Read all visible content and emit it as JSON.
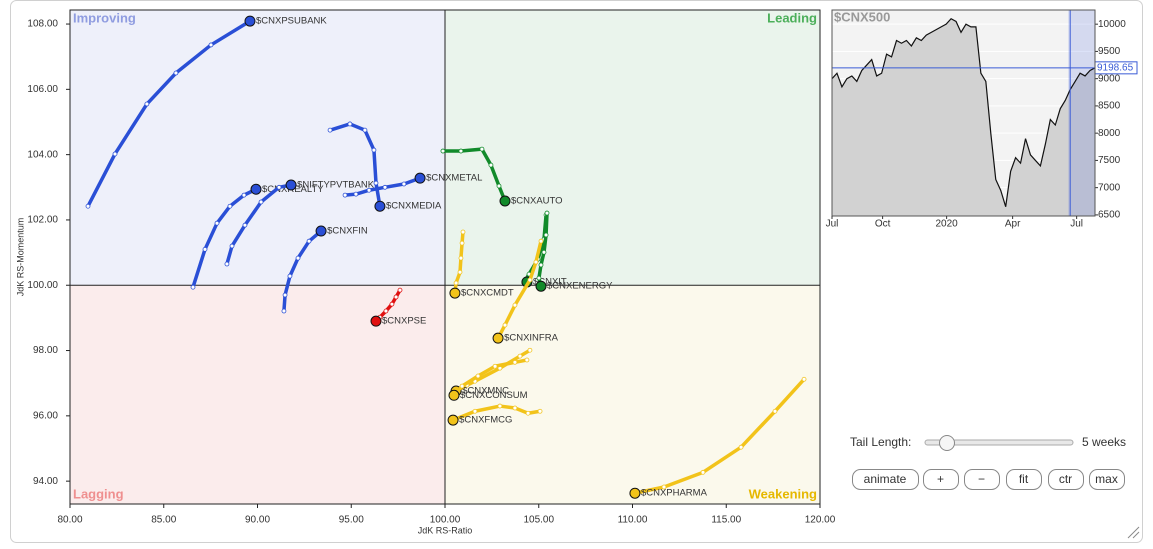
{
  "chart_data": [
    {
      "type": "rrg",
      "xlabel": "JdK RS-Ratio",
      "ylabel": "JdK RS-Momentum",
      "xlim": [
        80,
        120
      ],
      "ylim": [
        93.3,
        108.43
      ],
      "origin": [
        100,
        100
      ],
      "xticks": [
        {
          "value": 80,
          "label": "80.00"
        },
        {
          "value": 85,
          "label": "85.00"
        },
        {
          "value": 90,
          "label": "90.00"
        },
        {
          "value": 95,
          "label": "95.00"
        },
        {
          "value": 100,
          "label": "100.00"
        },
        {
          "value": 105,
          "label": "105.00"
        },
        {
          "value": 110,
          "label": "110.00"
        },
        {
          "value": 115,
          "label": "115.00"
        },
        {
          "value": 120,
          "label": "120.00"
        }
      ],
      "yticks": [
        {
          "value": 94,
          "label": "94.00"
        },
        {
          "value": 96,
          "label": "96.00"
        },
        {
          "value": 98,
          "label": "98.00"
        },
        {
          "value": 100,
          "label": "100.00"
        },
        {
          "value": 102,
          "label": "102.00"
        },
        {
          "value": 104,
          "label": "104.00"
        },
        {
          "value": 106,
          "label": "106.00"
        },
        {
          "value": 108,
          "label": "108.00"
        }
      ],
      "quadrants": [
        {
          "label": "Improving",
          "color": "#8f9ce0",
          "fill": "#eef0fa"
        },
        {
          "label": "Leading",
          "color": "#4caf5a",
          "fill": "#eaf4ec"
        },
        {
          "label": "Lagging",
          "color": "#ef8f8f",
          "fill": "#fbecec"
        },
        {
          "label": "Weakening",
          "color": "#e6b800",
          "fill": "#fbf9ec"
        }
      ],
      "series": [
        {
          "name": "$CNXPSUBANK",
          "color": "#2a4fd6",
          "x": [
            80.96,
            82.4,
            84.1,
            85.65,
            87.52,
            89.6
          ],
          "values": [
            102.42,
            104.02,
            105.55,
            106.5,
            107.36,
            108.09
          ]
        },
        {
          "name": "$CNXREALTY",
          "color": "#2a4fd6",
          "x": [
            86.56,
            87.2,
            87.84,
            88.53,
            89.28,
            89.92
          ],
          "values": [
            99.94,
            101.1,
            101.9,
            102.42,
            102.76,
            102.94
          ]
        },
        {
          "name": "$NIFTYPVTBANK",
          "color": "#2a4fd6",
          "x": [
            88.37,
            88.64,
            89.33,
            90.19,
            91.15,
            91.79
          ],
          "values": [
            100.65,
            101.2,
            101.84,
            102.55,
            103.0,
            103.07
          ]
        },
        {
          "name": "$CNXFIN",
          "color": "#2a4fd6",
          "x": [
            91.41,
            91.47,
            91.73,
            92.16,
            92.75,
            93.39
          ],
          "values": [
            99.21,
            99.7,
            100.28,
            100.83,
            101.35,
            101.66
          ]
        },
        {
          "name": "$CNXMEDIA",
          "color": "#2a4fd6",
          "x": [
            93.87,
            94.93,
            95.73,
            96.21,
            96.32,
            96.53
          ],
          "values": [
            104.75,
            104.94,
            104.75,
            104.14,
            103.13,
            102.42
          ]
        },
        {
          "name": "$CNXMETAL",
          "color": "#2a4fd6",
          "x": [
            94.67,
            95.25,
            95.95,
            96.8,
            97.81,
            98.67
          ],
          "values": [
            102.76,
            102.79,
            102.91,
            103.0,
            103.1,
            103.28
          ]
        },
        {
          "name": "$CNXAUTO",
          "color": "#118a2a",
          "x": [
            99.89,
            100.85,
            101.97,
            102.45,
            102.88,
            103.2
          ],
          "values": [
            104.11,
            104.11,
            104.17,
            103.68,
            103.04,
            102.58
          ]
        },
        {
          "name": "$CNXIT",
          "color": "#118a2a",
          "x": [
            105.39,
            105.28,
            104.96,
            104.48,
            104.21,
            104.37
          ],
          "values": [
            102.15,
            101.41,
            100.8,
            100.34,
            100.07,
            100.1
          ]
        },
        {
          "name": "$CNXENERGY",
          "color": "#118a2a",
          "x": [
            105.44,
            105.39,
            105.28,
            105.12,
            105.01,
            105.12
          ],
          "values": [
            102.21,
            101.54,
            101.01,
            100.62,
            100.22,
            99.97
          ]
        },
        {
          "name": "$CNXCMDT",
          "color": "#f2c31a",
          "x": [
            100.96,
            100.91,
            100.85,
            100.8,
            100.59,
            100.53
          ],
          "values": [
            101.63,
            101.29,
            100.83,
            100.4,
            100.07,
            99.76
          ]
        },
        {
          "name": "$CNXINFRA",
          "color": "#f2c31a",
          "x": [
            105.12,
            104.85,
            104.53,
            103.73,
            103.2,
            102.83
          ],
          "values": [
            101.35,
            100.71,
            100.16,
            99.39,
            98.78,
            98.38
          ]
        },
        {
          "name": "$CNXMNC",
          "color": "#f2c31a",
          "x": [
            104.53,
            104.0,
            102.93,
            101.6,
            101.17,
            100.59
          ],
          "values": [
            98.01,
            97.83,
            97.46,
            97.06,
            96.94,
            96.76
          ]
        },
        {
          "name": "$CNXCONSUM",
          "color": "#f2c31a",
          "x": [
            104.37,
            103.73,
            102.67,
            101.76,
            100.91,
            100.48
          ],
          "values": [
            97.71,
            97.64,
            97.52,
            97.22,
            96.91,
            96.63
          ]
        },
        {
          "name": "$CNXFMCG",
          "color": "#f2c31a",
          "x": [
            105.07,
            104.43,
            103.73,
            102.93,
            101.6,
            100.43
          ],
          "values": [
            96.14,
            96.08,
            96.24,
            96.3,
            96.14,
            95.87
          ]
        },
        {
          "name": "$CNXPHARMA",
          "color": "#f2c31a",
          "x": [
            119.15,
            117.6,
            115.79,
            113.76,
            111.68,
            110.13
          ],
          "values": [
            97.12,
            96.14,
            95.04,
            94.27,
            93.82,
            93.63
          ]
        },
        {
          "name": "$CNXPSE",
          "color": "#e01010",
          "x": [
            97.6,
            97.39,
            97.17,
            96.85,
            96.53,
            96.32
          ],
          "values": [
            99.85,
            99.64,
            99.42,
            99.21,
            99.02,
            98.9
          ]
        }
      ]
    },
    {
      "type": "line",
      "title": "$CNX500",
      "color": "#111111",
      "values": [
        9000,
        9100,
        8850,
        9000,
        9050,
        8950,
        9150,
        9250,
        9350,
        9050,
        9100,
        9450,
        9400,
        9700,
        9650,
        9700,
        9600,
        9750,
        9700,
        9800,
        9850,
        9900,
        9950,
        10000,
        10100,
        10050,
        9850,
        10000,
        9950,
        9950,
        9100,
        8950,
        8000,
        7150,
        6950,
        6650,
        7300,
        7550,
        7450,
        7900,
        7600,
        7500,
        7400,
        7800,
        8250,
        8150,
        8450,
        8600,
        8800,
        8950,
        9100,
        9050,
        9150,
        9198.65
      ],
      "xlim": [
        0,
        53
      ],
      "xticks": [
        {
          "value": 0,
          "label": "Jul"
        },
        {
          "value": 10.2,
          "label": "Oct"
        },
        {
          "value": 23.1,
          "label": "2020"
        },
        {
          "value": 36.4,
          "label": "Apr"
        },
        {
          "value": 49.3,
          "label": "Jul"
        }
      ],
      "ylim": [
        6480,
        10260
      ],
      "yticks": [
        6500,
        7000,
        7500,
        8000,
        8500,
        9000,
        9500,
        10000
      ]
    }
  ],
  "controls": {
    "tail_label": "Tail Length:",
    "tail_value": "5 weeks",
    "buttons": [
      "animate",
      "+",
      "−",
      "fit",
      "ctr",
      "max"
    ]
  }
}
